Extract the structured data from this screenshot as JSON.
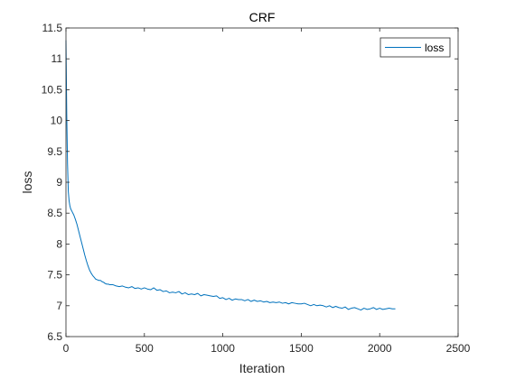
{
  "chart_data": {
    "type": "line",
    "title": "CRF",
    "xlabel": "Iteration",
    "ylabel": "loss",
    "xlim": [
      0,
      2500
    ],
    "ylim": [
      6.5,
      11.5
    ],
    "xticks": [
      0,
      500,
      1000,
      1500,
      2000,
      2500
    ],
    "yticks": [
      6.5,
      7,
      7.5,
      8,
      8.5,
      9,
      9.5,
      10,
      10.5,
      11,
      11.5
    ],
    "xtick_labels": [
      "0",
      "500",
      "1000",
      "1500",
      "2000",
      "2500"
    ],
    "ytick_labels": [
      "6.5",
      "7",
      "7.5",
      "8",
      "8.5",
      "9",
      "9.5",
      "10",
      "10.5",
      "11",
      "11.5"
    ],
    "grid": false,
    "legend_position": "top-right",
    "line_color": "#0072BD",
    "series": [
      {
        "name": "loss",
        "x": [
          0,
          5,
          10,
          15,
          20,
          25,
          30,
          40,
          50,
          60,
          70,
          80,
          90,
          100,
          110,
          120,
          130,
          140,
          150,
          160,
          170,
          180,
          190,
          200,
          210,
          220,
          230,
          240,
          250,
          260,
          270,
          280,
          300,
          320,
          340,
          360,
          380,
          400,
          420,
          440,
          460,
          480,
          500,
          520,
          540,
          560,
          580,
          600,
          620,
          640,
          660,
          680,
          700,
          720,
          740,
          760,
          780,
          800,
          820,
          840,
          860,
          880,
          900,
          920,
          940,
          960,
          980,
          1000,
          1020,
          1040,
          1060,
          1080,
          1100,
          1120,
          1140,
          1160,
          1180,
          1200,
          1220,
          1240,
          1260,
          1280,
          1300,
          1320,
          1340,
          1360,
          1380,
          1400,
          1420,
          1440,
          1460,
          1480,
          1500,
          1520,
          1540,
          1560,
          1580,
          1600,
          1620,
          1640,
          1660,
          1680,
          1700,
          1720,
          1740,
          1760,
          1780,
          1800,
          1820,
          1840,
          1860,
          1880,
          1900,
          1920,
          1940,
          1960,
          1980,
          2000,
          2020,
          2040,
          2060,
          2080,
          2100
        ],
        "y": [
          11.3,
          10.1,
          9.3,
          8.85,
          8.7,
          8.62,
          8.57,
          8.52,
          8.47,
          8.4,
          8.32,
          8.22,
          8.12,
          8.02,
          7.92,
          7.82,
          7.73,
          7.65,
          7.58,
          7.53,
          7.49,
          7.46,
          7.43,
          7.42,
          7.41,
          7.41,
          7.39,
          7.38,
          7.36,
          7.35,
          7.35,
          7.34,
          7.34,
          7.32,
          7.31,
          7.32,
          7.3,
          7.29,
          7.31,
          7.28,
          7.29,
          7.27,
          7.29,
          7.27,
          7.26,
          7.29,
          7.25,
          7.26,
          7.23,
          7.24,
          7.21,
          7.22,
          7.21,
          7.23,
          7.19,
          7.21,
          7.18,
          7.19,
          7.18,
          7.2,
          7.16,
          7.18,
          7.17,
          7.16,
          7.15,
          7.16,
          7.12,
          7.13,
          7.1,
          7.12,
          7.09,
          7.11,
          7.1,
          7.1,
          7.08,
          7.1,
          7.07,
          7.09,
          7.07,
          7.08,
          7.06,
          7.07,
          7.05,
          7.06,
          7.05,
          7.06,
          7.04,
          7.05,
          7.03,
          7.05,
          7.04,
          7.03,
          7.03,
          7.04,
          7.02,
          7.0,
          7.02,
          7.0,
          7.01,
          7.0,
          6.98,
          7.0,
          6.97,
          6.99,
          6.97,
          6.96,
          6.98,
          6.94,
          6.96,
          6.97,
          6.95,
          6.93,
          6.96,
          6.94,
          6.95,
          6.97,
          6.94,
          6.96,
          6.94,
          6.95,
          6.96,
          6.95,
          6.95
        ]
      }
    ]
  }
}
